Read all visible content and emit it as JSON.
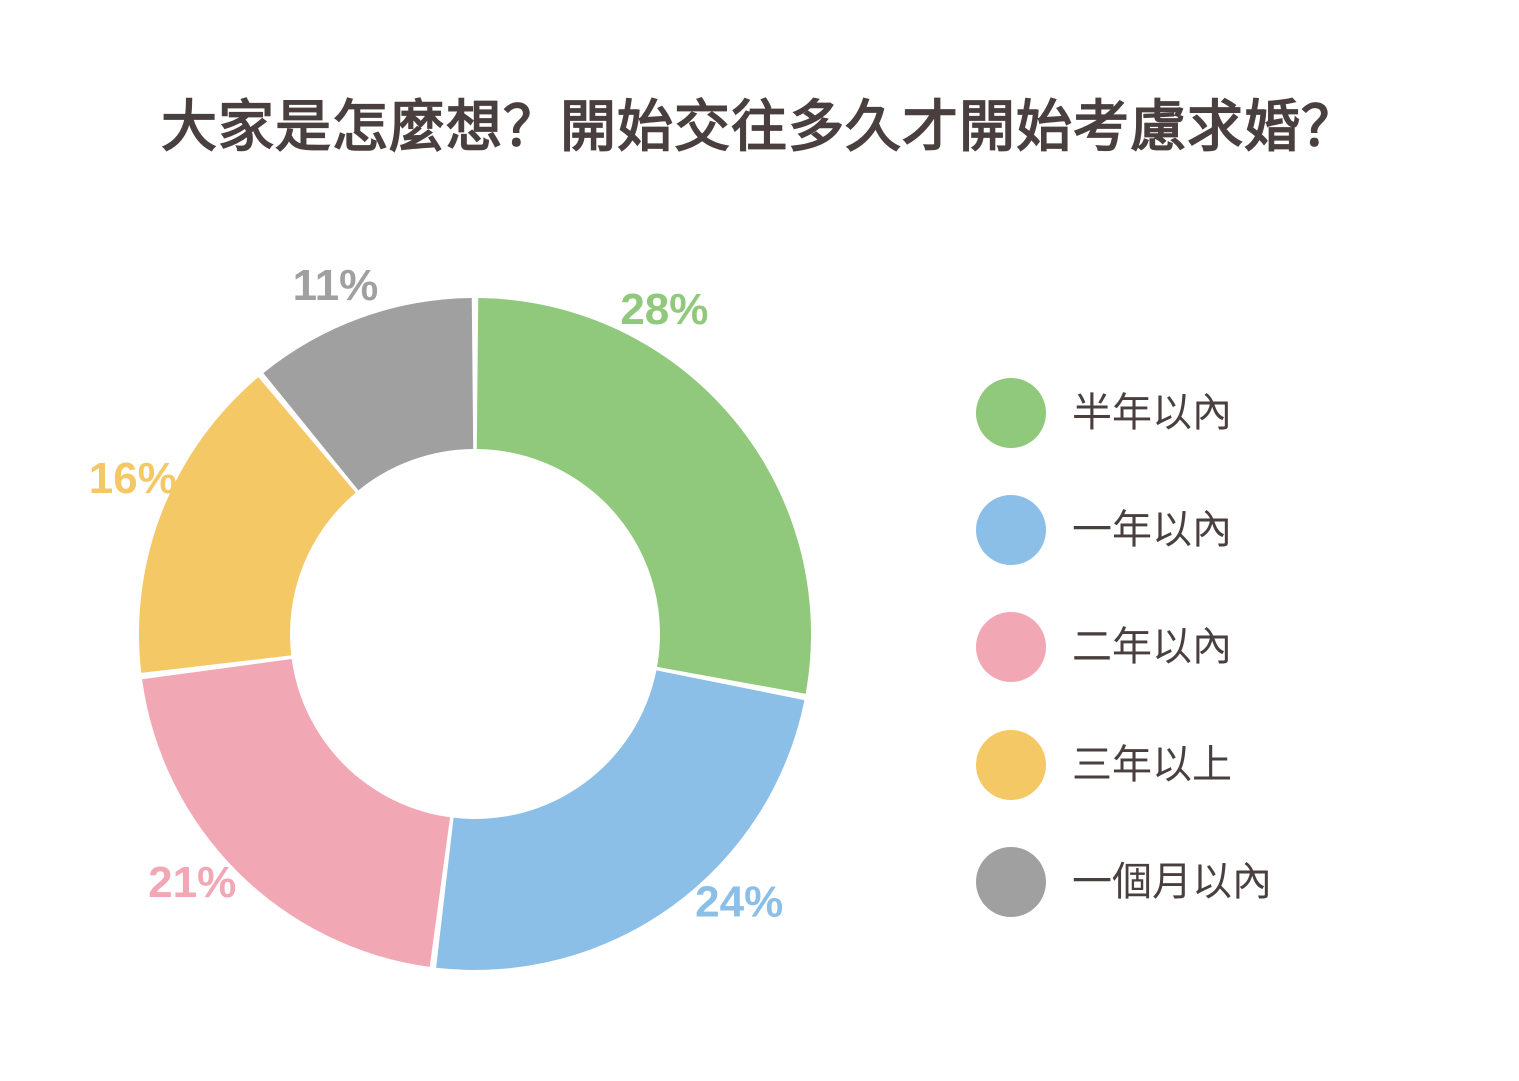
{
  "title": "大家是怎麼想？開始交往多久才開始考慮求婚？",
  "chart_data": {
    "type": "pie",
    "title": "大家是怎麼想？開始交往多久才開始考慮求婚？",
    "donut": true,
    "legend_position": "right",
    "slices": [
      {
        "label": "半年以內",
        "value": 28,
        "display": "28%",
        "color": "#90c97b"
      },
      {
        "label": "一年以內",
        "value": 24,
        "display": "24%",
        "color": "#8bbfe8"
      },
      {
        "label": "二年以內",
        "value": 21,
        "display": "21%",
        "color": "#f2a7b4"
      },
      {
        "label": "三年以上",
        "value": 16,
        "display": "16%",
        "color": "#f5c866"
      },
      {
        "label": "一個月以內",
        "value": 11,
        "display": "11%",
        "color": "#a0a0a0"
      }
    ]
  }
}
